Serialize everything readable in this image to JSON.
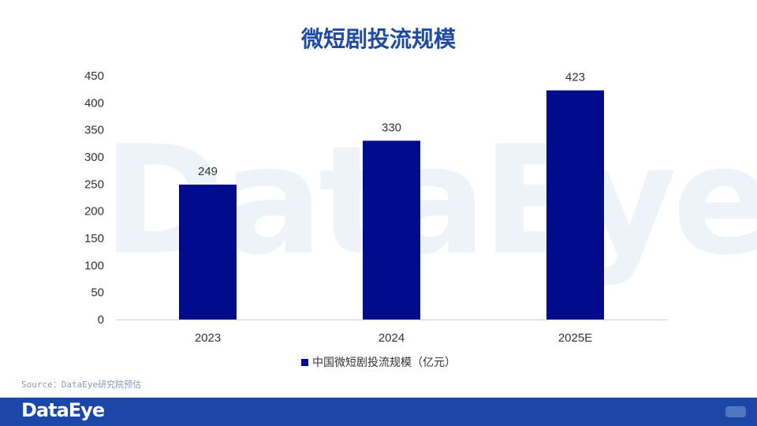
{
  "watermark": "DataEye",
  "chart_data": {
    "type": "bar",
    "title": "微短剧投流规模",
    "categories": [
      "2023",
      "2024",
      "2025E"
    ],
    "series": [
      {
        "name": "中国微短剧投流规模（亿元）",
        "values": [
          249,
          330,
          423
        ]
      }
    ],
    "ylim": [
      0,
      450
    ],
    "yticks": [
      0,
      50,
      100,
      150,
      200,
      250,
      300,
      350,
      400,
      450
    ],
    "grid": false,
    "legend": "bottom",
    "colors": {
      "bar": "#000c8c",
      "title": "#1f4aa3"
    }
  },
  "source": "Source：DataEye研究院预估",
  "footer": {
    "logo": "DataEye",
    "bar_color": "#1a47a8"
  }
}
